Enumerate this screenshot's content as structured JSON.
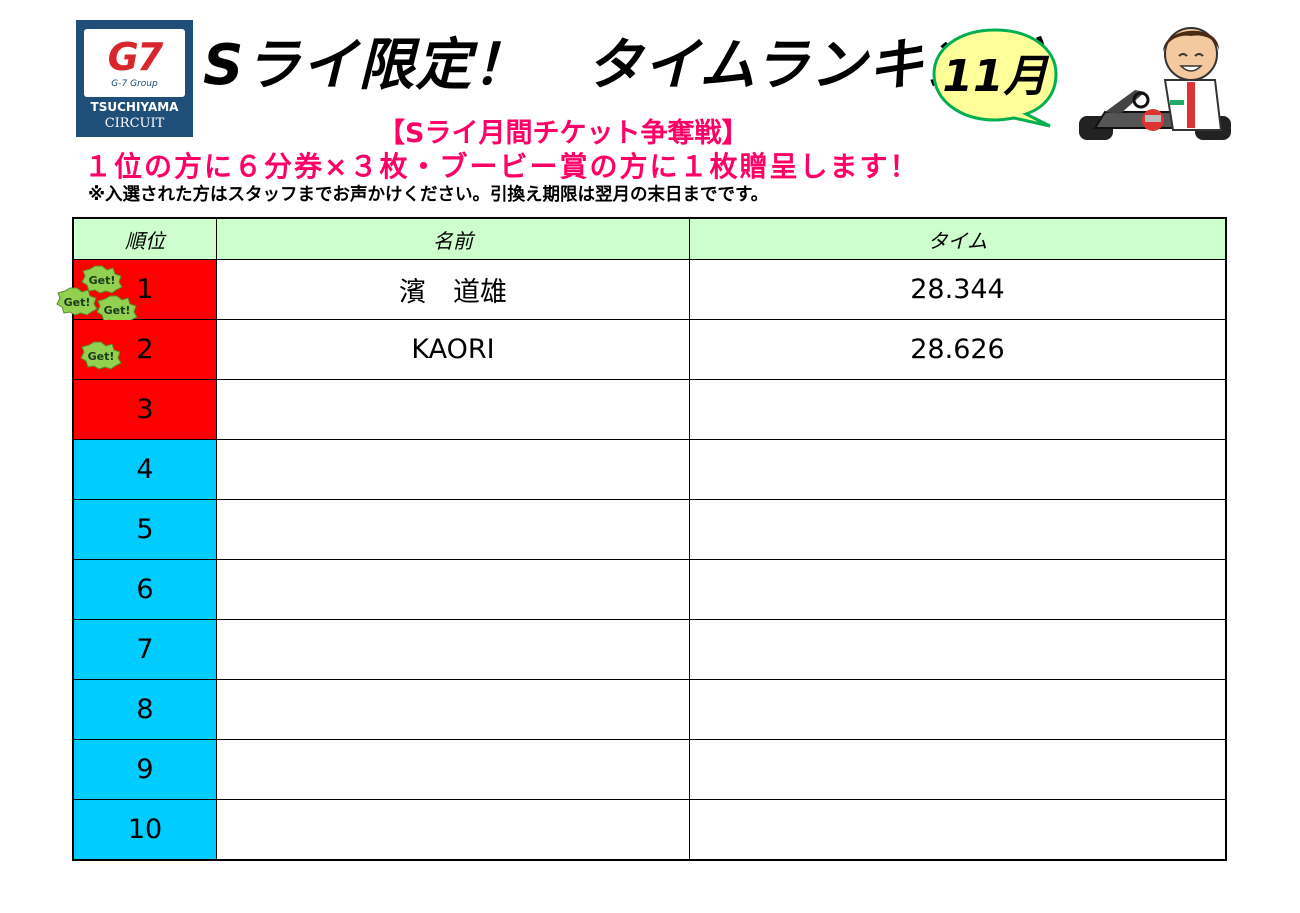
{
  "logo": {
    "brand": "G7",
    "group": "G-7 Group",
    "line1": "TSUCHIYAMA",
    "line2": "CIRCUIT"
  },
  "header": {
    "title": "Sライ限定！　タイムランキング",
    "month": "11月",
    "subtitle": "【Sライ月間チケット争奪戦】",
    "prize": "１位の方に６分券×３枚・ブービー賞の方に１枚贈呈します！",
    "note": "※入選された方はスタッフまでお声かけください。引換え期限は翌月の末日までです。"
  },
  "table": {
    "headers": [
      "順位",
      "名前",
      "タイム"
    ],
    "rows": [
      {
        "rank": "1",
        "name": "濱　道雄",
        "time": "28.344"
      },
      {
        "rank": "2",
        "name": "KAORI",
        "time": "28.626"
      },
      {
        "rank": "3",
        "name": "",
        "time": ""
      },
      {
        "rank": "4",
        "name": "",
        "time": ""
      },
      {
        "rank": "5",
        "name": "",
        "time": ""
      },
      {
        "rank": "6",
        "name": "",
        "time": ""
      },
      {
        "rank": "7",
        "name": "",
        "time": ""
      },
      {
        "rank": "8",
        "name": "",
        "time": ""
      },
      {
        "rank": "9",
        "name": "",
        "time": ""
      },
      {
        "rank": "10",
        "name": "",
        "time": ""
      }
    ]
  },
  "badge_text": "Get!",
  "colors": {
    "prize_text": "#ff0066",
    "top_rank": "#ff0000",
    "other_rank": "#00ccff",
    "header_row": "#ccffcc",
    "logo_bg": "#1f4e79",
    "bubble_fill": "#ffff99",
    "bubble_stroke": "#00b050",
    "badge_fill": "#92d050"
  },
  "icons": [
    "g7-logo",
    "speech-bubble",
    "mascot-kart-driver",
    "get-badge"
  ]
}
